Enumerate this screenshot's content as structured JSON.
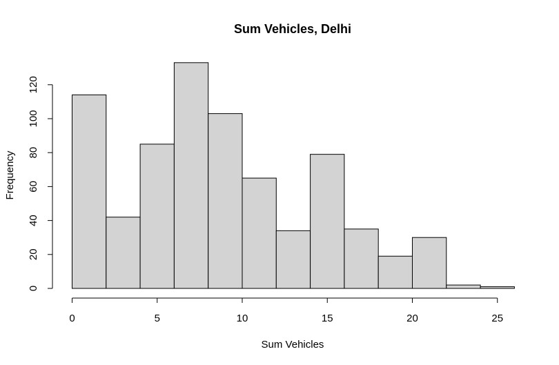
{
  "chart_data": {
    "type": "bar",
    "title": "Sum Vehicles, Delhi",
    "xlabel": "Sum Vehicles",
    "ylabel": "Frequency",
    "bins": [
      {
        "start": 0,
        "end": 2,
        "count": 114
      },
      {
        "start": 2,
        "end": 4,
        "count": 42
      },
      {
        "start": 4,
        "end": 6,
        "count": 85
      },
      {
        "start": 6,
        "end": 8,
        "count": 133
      },
      {
        "start": 8,
        "end": 10,
        "count": 103
      },
      {
        "start": 10,
        "end": 12,
        "count": 65
      },
      {
        "start": 12,
        "end": 14,
        "count": 34
      },
      {
        "start": 14,
        "end": 16,
        "count": 79
      },
      {
        "start": 16,
        "end": 18,
        "count": 35
      },
      {
        "start": 18,
        "end": 20,
        "count": 19
      },
      {
        "start": 20,
        "end": 22,
        "count": 30
      },
      {
        "start": 22,
        "end": 24,
        "count": 2
      },
      {
        "start": 24,
        "end": 26,
        "count": 1
      }
    ],
    "x_ticks": [
      0,
      5,
      10,
      15,
      20,
      25
    ],
    "y_ticks": [
      0,
      20,
      40,
      60,
      80,
      100,
      120
    ],
    "xlim": [
      0,
      26
    ],
    "ylim": [
      0,
      133
    ],
    "grid": false,
    "legend": "none"
  }
}
